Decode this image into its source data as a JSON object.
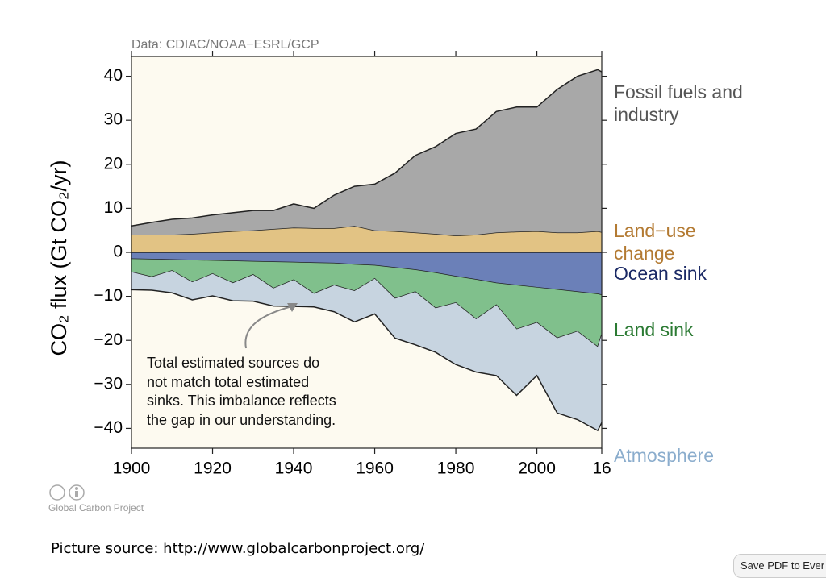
{
  "chart_data": {
    "type": "area",
    "data_note": "Data: CDIAC/NOAA−ESRL/GCP",
    "y_label": "CO₂ flux (Gt CO₂/yr)",
    "annotation": [
      "Total estimated sources do",
      "not match total estimated",
      "sinks. This imbalance reflects",
      "the gap in our understanding."
    ],
    "x": [
      1900,
      1905,
      1910,
      1915,
      1920,
      1925,
      1930,
      1935,
      1940,
      1945,
      1950,
      1955,
      1960,
      1965,
      1970,
      1975,
      1980,
      1985,
      1990,
      1995,
      2000,
      2005,
      2010,
      2015,
      2016
    ],
    "xlim": [
      1900,
      2016
    ],
    "xticks": [
      1900,
      1920,
      1940,
      1960,
      1980,
      2000,
      {
        "value": 2016,
        "label": "16"
      }
    ],
    "ylim": [
      -44.5,
      44.5
    ],
    "yticks": [
      {
        "value": -40,
        "label": "−40"
      },
      {
        "value": -30,
        "label": "−30"
      },
      {
        "value": -20,
        "label": "−20"
      },
      {
        "value": -10,
        "label": "−10"
      },
      0,
      10,
      20,
      30,
      40
    ],
    "series": [
      {
        "name": "Land−use change",
        "color": "#e2c384",
        "label_color": "#b37a32",
        "side": "positive",
        "values": [
          4,
          4,
          4,
          4.2,
          4.5,
          4.8,
          5,
          5.3,
          5.6,
          5.5,
          5.5,
          6,
          5,
          4.8,
          4.5,
          4.2,
          3.8,
          4,
          4.5,
          4.7,
          4.8,
          4.5,
          4.5,
          4.8,
          4.6
        ]
      },
      {
        "name": "Fossil fuels and industry",
        "color": "#a8a8a8",
        "label_color": "#555555",
        "side": "positive",
        "values": [
          2,
          2.8,
          3.5,
          3.6,
          4,
          4.2,
          4.5,
          4.2,
          5.4,
          4.5,
          7.5,
          9,
          10.5,
          13.2,
          17.5,
          19.8,
          23.2,
          24,
          27.5,
          28.3,
          28.2,
          32.5,
          35.5,
          36.7,
          36.4
        ]
      },
      {
        "name": "Ocean sink",
        "color": "#6b80b8",
        "label_color": "#1b2a66",
        "side": "negative",
        "values": [
          -1.5,
          -1.6,
          -1.7,
          -1.8,
          -1.9,
          -2,
          -2.1,
          -2.2,
          -2.3,
          -2.4,
          -2.5,
          -2.8,
          -3,
          -3.5,
          -4,
          -4.7,
          -5.5,
          -6.2,
          -7,
          -7.5,
          -8,
          -8.5,
          -9,
          -9.5,
          -9.7
        ]
      },
      {
        "name": "Land sink",
        "color": "#80c08c",
        "label_color": "#2b7a33",
        "side": "negative",
        "values": [
          -3,
          -4,
          -2.5,
          -5,
          -3,
          -5,
          -3,
          -6,
          -4,
          -7,
          -5,
          -6,
          -3,
          -7,
          -5,
          -8,
          -6,
          -9,
          -5,
          -10,
          -8,
          -11,
          -9,
          -12,
          -9
        ]
      },
      {
        "name": "Atmosphere",
        "color": "#c7d4e0",
        "label_color": "#8badcd",
        "side": "negative",
        "values": [
          -4,
          -3,
          -5,
          -4,
          -5,
          -4,
          -6,
          -4,
          -6,
          -3,
          -6,
          -7,
          -8,
          -9,
          -12,
          -10,
          -14,
          -12,
          -16,
          -15,
          -12,
          -17,
          -20,
          -19,
          -20
        ]
      }
    ]
  },
  "credit": "Global Carbon Project",
  "source_note": "Picture source: http://www.globalcarbonproject.org/",
  "button": "Save PDF to Ever"
}
